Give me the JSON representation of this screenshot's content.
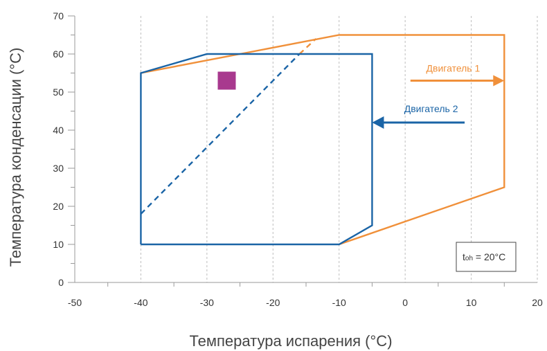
{
  "chart_data": {
    "type": "line",
    "xlabel": "Температура испарения (°C)",
    "ylabel": "Температура конденсации (°C)",
    "xlim": [
      -50,
      20
    ],
    "ylim": [
      0,
      70
    ],
    "x_ticks": [
      -50,
      -40,
      -30,
      -20,
      -10,
      0,
      10,
      20
    ],
    "y_ticks": [
      0,
      10,
      20,
      30,
      40,
      50,
      60,
      70
    ],
    "grid": "vertical",
    "series": [
      {
        "name": "Двигатель 1",
        "color": "#f0903a",
        "envelope": [
          [
            -40,
            55
          ],
          [
            -10,
            65
          ],
          [
            15,
            65
          ],
          [
            15,
            25
          ],
          [
            -10,
            10
          ]
        ],
        "dashed": [
          [
            -16,
            60
          ],
          [
            -13.5,
            64
          ]
        ]
      },
      {
        "name": "Двигатель 2",
        "color": "#1a64a6",
        "envelope": [
          [
            -40,
            10
          ],
          [
            -40,
            55
          ],
          [
            -30,
            60
          ],
          [
            -5,
            60
          ],
          [
            -5,
            15
          ],
          [
            -10,
            10
          ],
          [
            -40,
            10
          ]
        ],
        "dashed": [
          [
            -40,
            18
          ],
          [
            -16,
            60
          ]
        ]
      }
    ],
    "marker": {
      "x": -27,
      "y": 53,
      "color": "#a8398e"
    },
    "annotation": {
      "main": "t",
      "sub": "oh",
      "rest": " = 20°C"
    }
  }
}
